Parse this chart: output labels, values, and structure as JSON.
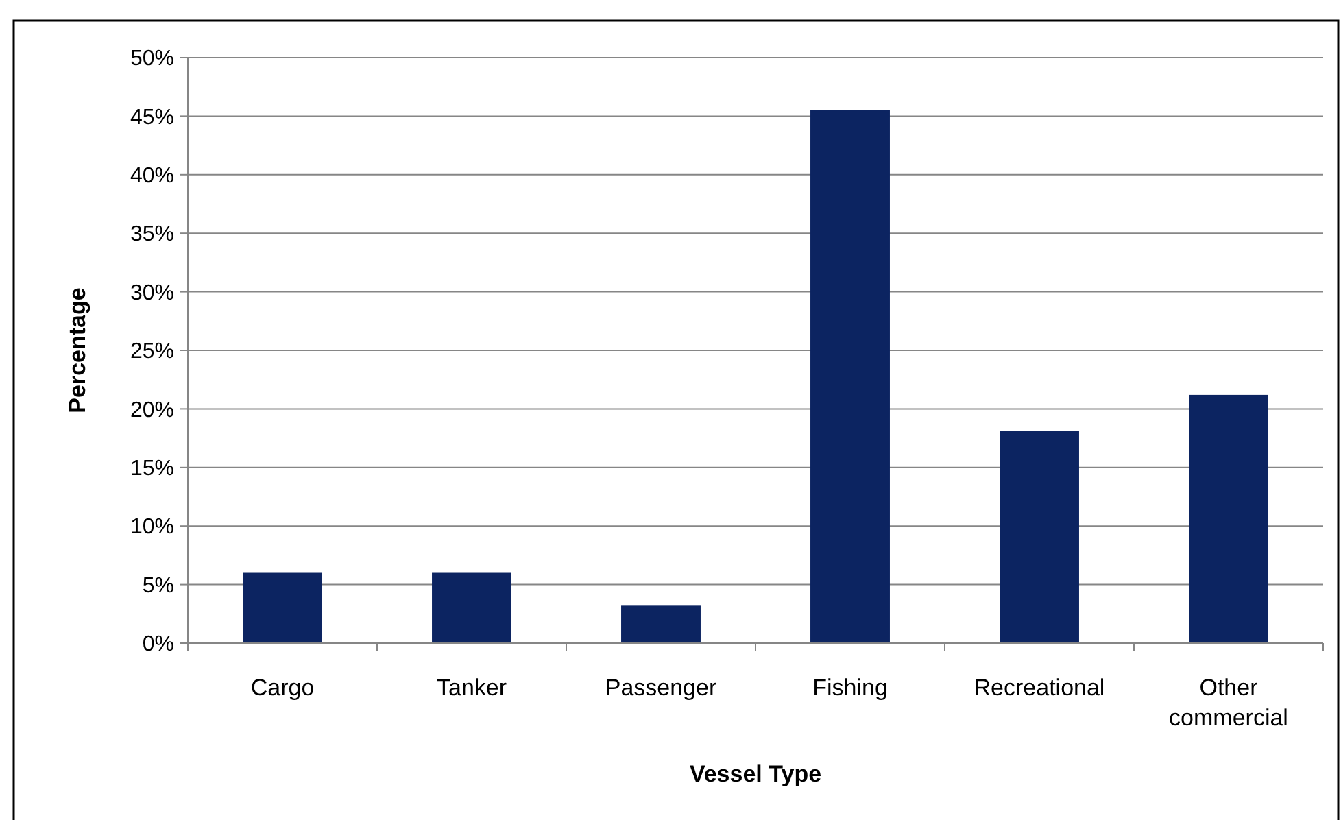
{
  "chart_data": {
    "type": "bar",
    "xlabel": "Vessel Type",
    "ylabel": "Percentage",
    "categories": [
      "Cargo",
      "Tanker",
      "Passenger",
      "Fishing",
      "Recreational",
      "Other commercial"
    ],
    "values": [
      6,
      6,
      3.2,
      45.5,
      18.1,
      21.2
    ],
    "color": "#0c2461",
    "ylim": [
      0,
      50
    ],
    "yticks": [
      {
        "value": 0,
        "label": "0%"
      },
      {
        "value": 5,
        "label": "5%"
      },
      {
        "value": 10,
        "label": "10%"
      },
      {
        "value": 15,
        "label": "15%"
      },
      {
        "value": 20,
        "label": "20%"
      },
      {
        "value": 25,
        "label": "25%"
      },
      {
        "value": 30,
        "label": "30%"
      },
      {
        "value": 35,
        "label": "35%"
      },
      {
        "value": 40,
        "label": "40%"
      },
      {
        "value": 45,
        "label": "45%"
      },
      {
        "value": 50,
        "label": "50%"
      }
    ],
    "grid": "y"
  }
}
